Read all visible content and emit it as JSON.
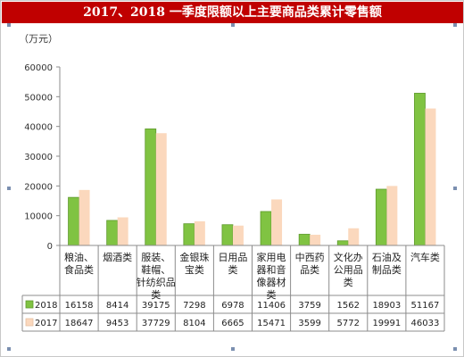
{
  "title": "2017、2018 一季度限额以上主要商品类累计零售额",
  "chart_data": {
    "type": "bar",
    "title": "2017、2018 一季度限额以上主要商品类累计零售额",
    "ylabel": "（万元）",
    "xlabel": "",
    "ylim": [
      0,
      60000
    ],
    "yticks": [
      0,
      10000,
      20000,
      30000,
      40000,
      50000,
      60000
    ],
    "grid": false,
    "legend": "table-rows",
    "categories": [
      [
        "粮油、",
        "食品类"
      ],
      [
        "烟酒类"
      ],
      [
        "服装、",
        "鞋帽、",
        "针纺织品",
        "类"
      ],
      [
        "金银珠",
        "宝类"
      ],
      [
        "日用品",
        "类"
      ],
      [
        "家用电",
        "器和音",
        "像器材",
        "类"
      ],
      [
        "中西药",
        "品类"
      ],
      [
        "文化办",
        "公用品",
        "类"
      ],
      [
        "石油及",
        "制品类"
      ],
      [
        "汽车类"
      ]
    ],
    "series": [
      {
        "name": "2018",
        "color": "#80c342",
        "values": [
          16158,
          8414,
          39175,
          7298,
          6978,
          11406,
          3759,
          1562,
          18903,
          51167
        ]
      },
      {
        "name": "2017",
        "color": "#fbd8bd",
        "values": [
          18647,
          9453,
          37729,
          8104,
          6665,
          15471,
          3599,
          5772,
          19991,
          46033
        ]
      }
    ]
  }
}
